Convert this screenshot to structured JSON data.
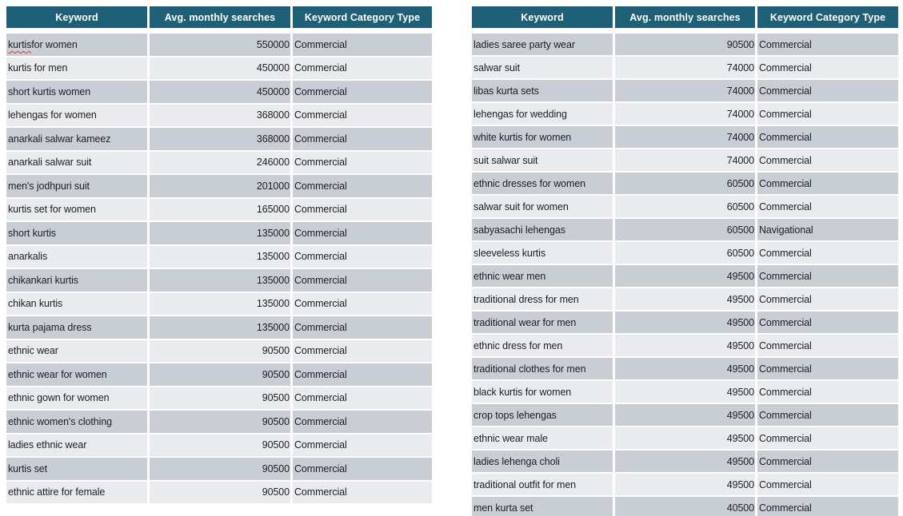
{
  "colors": {
    "header_bg": "#1e6078",
    "header_text": "#ffffff",
    "row_dark": "#c9cdd4",
    "row_light": "#e9ebee",
    "body_text": "#1d1f24",
    "spellcheck_underline": "#d83b2f"
  },
  "tables": [
    {
      "position": "left",
      "columns": [
        "Keyword",
        "Avg. monthly searches",
        "Keyword Category Type"
      ],
      "rows": [
        {
          "keyword": "kurtis for women",
          "searches": "550000",
          "category": "Commercial",
          "misspelled": "kurtis"
        },
        {
          "keyword": "kurtis for men",
          "searches": "450000",
          "category": "Commercial"
        },
        {
          "keyword": "short kurtis women",
          "searches": "450000",
          "category": "Commercial"
        },
        {
          "keyword": "lehengas for women",
          "searches": "368000",
          "category": "Commercial"
        },
        {
          "keyword": "anarkali salwar kameez",
          "searches": "368000",
          "category": "Commercial"
        },
        {
          "keyword": "anarkali salwar suit",
          "searches": "246000",
          "category": "Commercial"
        },
        {
          "keyword": "men's jodhpuri suit",
          "searches": "201000",
          "category": "Commercial"
        },
        {
          "keyword": "kurtis set for women",
          "searches": "165000",
          "category": "Commercial"
        },
        {
          "keyword": "short kurtis",
          "searches": "135000",
          "category": "Commercial"
        },
        {
          "keyword": "anarkalis",
          "searches": "135000",
          "category": "Commercial"
        },
        {
          "keyword": "chikankari kurtis",
          "searches": "135000",
          "category": "Commercial"
        },
        {
          "keyword": "chikan kurtis",
          "searches": "135000",
          "category": "Commercial"
        },
        {
          "keyword": "kurta pajama dress",
          "searches": "135000",
          "category": "Commercial"
        },
        {
          "keyword": "ethnic wear",
          "searches": "90500",
          "category": "Commercial"
        },
        {
          "keyword": "ethnic wear for women",
          "searches": "90500",
          "category": "Commercial"
        },
        {
          "keyword": "ethnic gown for women",
          "searches": "90500",
          "category": "Commercial"
        },
        {
          "keyword": "ethnic women's clothing",
          "searches": "90500",
          "category": "Commercial"
        },
        {
          "keyword": "ladies ethnic wear",
          "searches": "90500",
          "category": "Commercial"
        },
        {
          "keyword": "kurtis set",
          "searches": "90500",
          "category": "Commercial"
        },
        {
          "keyword": "ethnic attire for female",
          "searches": "90500",
          "category": "Commercial"
        }
      ]
    },
    {
      "position": "right",
      "columns": [
        "Keyword",
        "Avg. monthly searches",
        "Keyword Category Type"
      ],
      "rows": [
        {
          "keyword": "ladies saree party wear",
          "searches": "90500",
          "category": "Commercial"
        },
        {
          "keyword": "salwar suit",
          "searches": "74000",
          "category": "Commercial"
        },
        {
          "keyword": "libas kurta sets",
          "searches": "74000",
          "category": "Commercial"
        },
        {
          "keyword": "lehengas for wedding",
          "searches": "74000",
          "category": "Commercial"
        },
        {
          "keyword": "white kurtis for women",
          "searches": "74000",
          "category": "Commercial"
        },
        {
          "keyword": "suit salwar suit",
          "searches": "74000",
          "category": "Commercial"
        },
        {
          "keyword": "ethnic dresses for women",
          "searches": "60500",
          "category": "Commercial"
        },
        {
          "keyword": "salwar suit for women",
          "searches": "60500",
          "category": "Commercial"
        },
        {
          "keyword": "sabyasachi lehengas",
          "searches": "60500",
          "category": "Navigational"
        },
        {
          "keyword": "sleeveless kurtis",
          "searches": "60500",
          "category": "Commercial"
        },
        {
          "keyword": "ethnic wear men",
          "searches": "49500",
          "category": "Commercial"
        },
        {
          "keyword": "traditional dress for men",
          "searches": "49500",
          "category": "Commercial"
        },
        {
          "keyword": "traditional wear for men",
          "searches": "49500",
          "category": "Commercial"
        },
        {
          "keyword": "ethnic dress for men",
          "searches": "49500",
          "category": "Commercial"
        },
        {
          "keyword": "traditional clothes for men",
          "searches": "49500",
          "category": "Commercial"
        },
        {
          "keyword": "black kurtis for women",
          "searches": "49500",
          "category": "Commercial"
        },
        {
          "keyword": "crop tops lehengas",
          "searches": "49500",
          "category": "Commercial"
        },
        {
          "keyword": "ethnic wear male",
          "searches": "49500",
          "category": "Commercial"
        },
        {
          "keyword": "ladies lehenga choli",
          "searches": "49500",
          "category": "Commercial"
        },
        {
          "keyword": "traditional outfit for men",
          "searches": "49500",
          "category": "Commercial"
        },
        {
          "keyword": "men kurta set",
          "searches": "40500",
          "category": "Commercial"
        }
      ]
    }
  ]
}
